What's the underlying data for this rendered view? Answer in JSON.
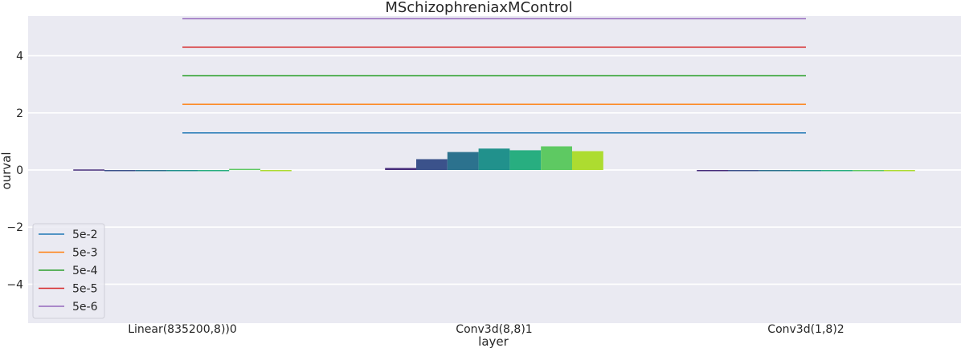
{
  "chart_data": {
    "type": "bar",
    "title": "MSchizophreniaxMControl",
    "xlabel": "layer",
    "ylabel": "ourval",
    "ylim": [
      -5.3,
      5.5
    ],
    "yticks": [
      4,
      2,
      0,
      -2,
      -4
    ],
    "ytick_labels": [
      "4",
      "2",
      "0",
      "−2",
      "−4"
    ],
    "grid": true,
    "categories": [
      "Linear(835200,8))0",
      "Conv3d(8,8)1",
      "Conv3d(1,8)2"
    ],
    "bar_series_colors": [
      "#472d7b",
      "#3b528b",
      "#2c728e",
      "#21918c",
      "#28ae80",
      "#5ec962",
      "#addc30"
    ],
    "bars": [
      [
        0.02,
        -0.04,
        0.0,
        -0.02,
        0.0,
        0.04,
        -0.04
      ],
      [
        0.07,
        0.38,
        0.63,
        0.75,
        0.69,
        0.83,
        0.66
      ],
      [
        0.0,
        0.0,
        0.0,
        0.0,
        0.0,
        0.0,
        0.0
      ]
    ],
    "threshold_lines": [
      {
        "name": "5e-2",
        "value": 1.3,
        "color": "#1f77b4"
      },
      {
        "name": "5e-3",
        "value": 2.3,
        "color": "#ff7f0e"
      },
      {
        "name": "5e-4",
        "value": 3.3,
        "color": "#2ca02c"
      },
      {
        "name": "5e-5",
        "value": 4.3,
        "color": "#d62728"
      },
      {
        "name": "5e-6",
        "value": 5.3,
        "color": "#9467bd"
      }
    ],
    "legend_position": "lower-left"
  }
}
